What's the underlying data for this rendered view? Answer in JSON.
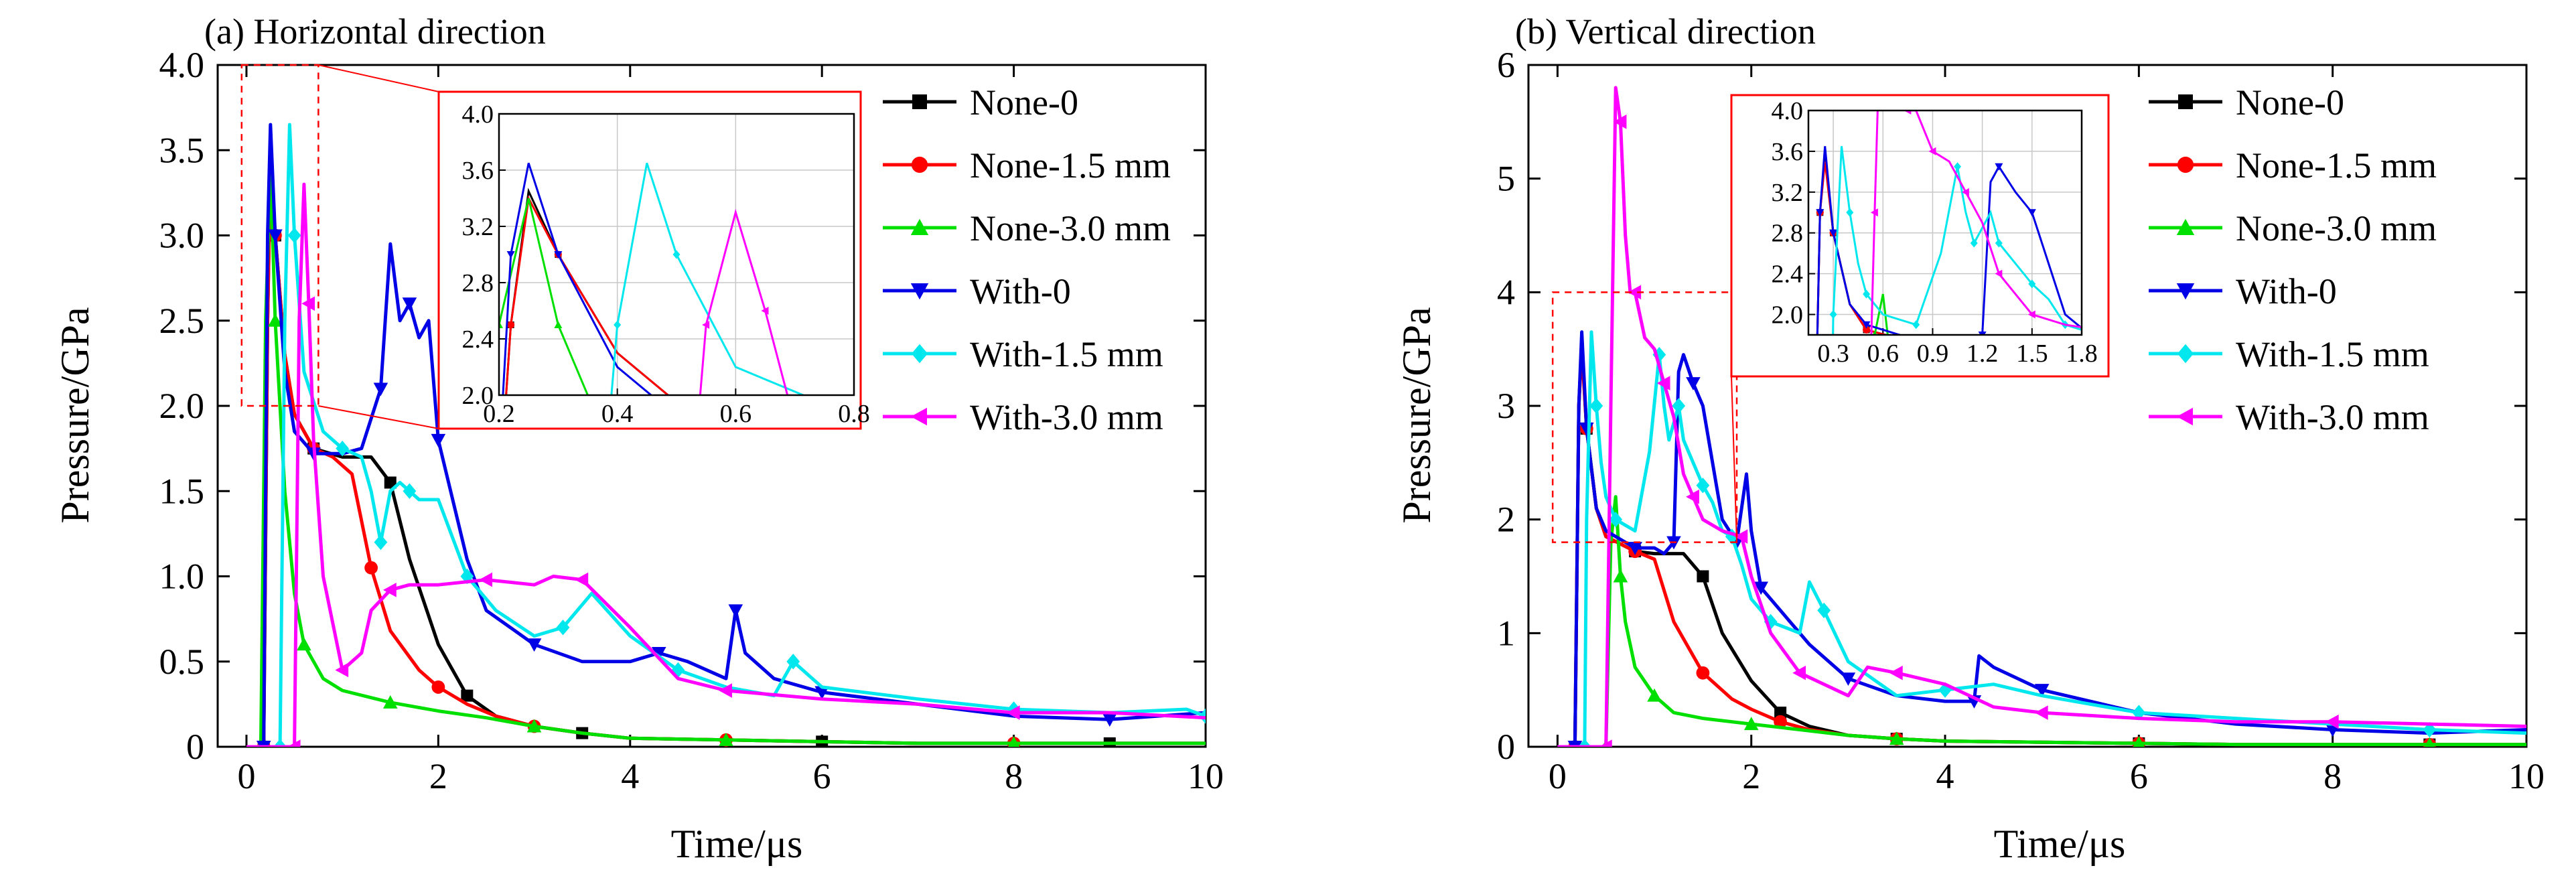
{
  "colors": {
    "None-0": "#000000",
    "None-1.5 mm": "#ff0000",
    "None-3.0 mm": "#00e000",
    "With-0": "#0000e6",
    "With-1.5 mm": "#00e8ee",
    "With-3.0 mm": "#ff00ff",
    "zoom_box": "#ff0000"
  },
  "markers": {
    "None-0": "square",
    "None-1.5 mm": "circle",
    "None-3.0 mm": "triangle-up",
    "With-0": "triangle-down",
    "With-1.5 mm": "diamond",
    "With-3.0 mm": "triangle-left"
  },
  "chart_data": [
    {
      "type": "line",
      "title": "(a) Horizontal direction",
      "xlabel": "Time/μs",
      "ylabel": "Pressure/GPa",
      "xlim": [
        -0.3,
        10
      ],
      "ylim": [
        0,
        4.0
      ],
      "xticks": [
        "0",
        "2",
        "4",
        "6",
        "8",
        "10"
      ],
      "xtick_values": [
        0,
        2,
        4,
        6,
        8,
        10
      ],
      "yticks": [
        "0",
        "0.5",
        "1.0",
        "1.5",
        "2.0",
        "2.5",
        "3.0",
        "3.5",
        "4.0"
      ],
      "ytick_values": [
        0,
        0.5,
        1.0,
        1.5,
        2.0,
        2.5,
        3.0,
        3.5,
        4.0
      ],
      "legend": [
        "None-0",
        "None-1.5 mm",
        "None-3.0 mm",
        "With-0",
        "With-1.5 mm",
        "With-3.0 mm"
      ],
      "legend_position": "right",
      "zoom_region": {
        "x": [
          -0.05,
          0.75
        ],
        "y": [
          2.0,
          4.0
        ]
      },
      "series": [
        {
          "name": "None-0",
          "x": [
            0,
            0.18,
            0.22,
            0.25,
            0.3,
            0.4,
            0.5,
            0.7,
            1.0,
            1.3,
            1.5,
            1.7,
            2.0,
            2.3,
            2.6,
            3.0,
            3.5,
            4.0,
            5,
            6,
            7,
            8,
            9,
            10
          ],
          "y": [
            0,
            0,
            2.5,
            3.45,
            3.0,
            2.3,
            1.95,
            1.75,
            1.7,
            1.7,
            1.55,
            1.1,
            0.6,
            0.3,
            0.18,
            0.12,
            0.08,
            0.05,
            0.04,
            0.03,
            0.02,
            0.02,
            0.02,
            0.02
          ]
        },
        {
          "name": "None-1.5 mm",
          "x": [
            0,
            0.18,
            0.22,
            0.25,
            0.3,
            0.4,
            0.5,
            0.7,
            0.9,
            1.1,
            1.3,
            1.5,
            1.8,
            2.0,
            2.3,
            2.6,
            3.0,
            3.5,
            4.0,
            5,
            6,
            7,
            8,
            9,
            10
          ],
          "y": [
            0,
            0,
            2.5,
            3.4,
            3.0,
            2.3,
            1.95,
            1.75,
            1.7,
            1.6,
            1.05,
            0.68,
            0.45,
            0.35,
            0.25,
            0.18,
            0.12,
            0.08,
            0.05,
            0.04,
            0.03,
            0.02,
            0.02,
            0.02,
            0.02
          ]
        },
        {
          "name": "None-3.0 mm",
          "x": [
            0,
            0.15,
            0.2,
            0.25,
            0.3,
            0.4,
            0.5,
            0.6,
            0.8,
            1.0,
            1.5,
            2.0,
            2.5,
            3.0,
            3.5,
            4.0,
            5,
            6,
            7,
            8,
            9,
            10
          ],
          "y": [
            0,
            0,
            2.5,
            3.4,
            2.5,
            1.5,
            0.9,
            0.6,
            0.4,
            0.33,
            0.26,
            0.21,
            0.17,
            0.12,
            0.08,
            0.05,
            0.04,
            0.03,
            0.02,
            0.02,
            0.02,
            0.02
          ]
        },
        {
          "name": "With-0",
          "x": [
            0,
            0.18,
            0.22,
            0.25,
            0.3,
            0.4,
            0.5,
            0.7,
            1.0,
            1.2,
            1.4,
            1.5,
            1.6,
            1.7,
            1.8,
            1.9,
            2.0,
            2.3,
            2.5,
            3.0,
            3.5,
            4.0,
            4.3,
            4.6,
            5.0,
            5.1,
            5.2,
            5.5,
            6.0,
            7,
            8,
            9,
            10
          ],
          "y": [
            0,
            0,
            3.0,
            3.65,
            3.0,
            2.2,
            1.85,
            1.72,
            1.72,
            1.75,
            2.1,
            2.95,
            2.5,
            2.6,
            2.4,
            2.5,
            1.8,
            1.1,
            0.8,
            0.6,
            0.5,
            0.5,
            0.55,
            0.5,
            0.4,
            0.8,
            0.55,
            0.4,
            0.32,
            0.25,
            0.18,
            0.16,
            0.2
          ]
        },
        {
          "name": "With-1.5 mm",
          "x": [
            0,
            0.35,
            0.4,
            0.45,
            0.5,
            0.6,
            0.8,
            1.0,
            1.2,
            1.3,
            1.4,
            1.5,
            1.6,
            1.7,
            1.8,
            2.0,
            2.3,
            2.6,
            3.0,
            3.3,
            3.6,
            4.0,
            4.5,
            5.0,
            5.5,
            5.7,
            6.0,
            7,
            8,
            9,
            9.8,
            10
          ],
          "y": [
            0,
            0,
            2.5,
            3.65,
            3.0,
            2.2,
            1.85,
            1.75,
            1.7,
            1.5,
            1.2,
            1.5,
            1.55,
            1.5,
            1.45,
            1.45,
            1.0,
            0.8,
            0.65,
            0.7,
            0.9,
            0.65,
            0.45,
            0.35,
            0.3,
            0.5,
            0.35,
            0.28,
            0.22,
            0.2,
            0.22,
            0.18
          ]
        },
        {
          "name": "With-3.0 mm",
          "x": [
            0,
            0.5,
            0.55,
            0.6,
            0.65,
            0.7,
            0.8,
            1.0,
            1.2,
            1.3,
            1.5,
            1.7,
            2.0,
            2.5,
            3.0,
            3.2,
            3.5,
            4.0,
            4.5,
            5.0,
            6,
            7,
            8,
            9,
            10
          ],
          "y": [
            0,
            0,
            2.5,
            3.3,
            2.6,
            1.8,
            1.0,
            0.45,
            0.55,
            0.8,
            0.92,
            0.95,
            0.95,
            0.98,
            0.95,
            1.0,
            0.98,
            0.7,
            0.4,
            0.33,
            0.28,
            0.25,
            0.2,
            0.2,
            0.17
          ]
        }
      ],
      "inset": {
        "xlim": [
          0.2,
          0.8
        ],
        "ylim": [
          2.0,
          4.0
        ],
        "xticks": [
          "0.2",
          "0.4",
          "0.6",
          "0.8"
        ],
        "xtick_values": [
          0.2,
          0.4,
          0.6,
          0.8
        ],
        "yticks": [
          "2.0",
          "2.4",
          "2.8",
          "3.2",
          "3.6",
          "4.0"
        ],
        "ytick_values": [
          2.0,
          2.4,
          2.8,
          3.2,
          3.6,
          4.0
        ]
      }
    },
    {
      "type": "line",
      "title": "(b) Vertical direction",
      "xlabel": "Time/μs",
      "ylabel": "Pressure/GPa",
      "xlim": [
        -0.3,
        10
      ],
      "ylim": [
        0,
        6
      ],
      "xticks": [
        "0",
        "2",
        "4",
        "6",
        "8",
        "10"
      ],
      "xtick_values": [
        0,
        2,
        4,
        6,
        8,
        10
      ],
      "yticks": [
        "0",
        "1",
        "2",
        "3",
        "4",
        "5",
        "6"
      ],
      "ytick_values": [
        0,
        1,
        2,
        3,
        4,
        5,
        6
      ],
      "legend": [
        "None-0",
        "None-1.5 mm",
        "None-3.0 mm",
        "With-0",
        "With-1.5 mm",
        "With-3.0 mm"
      ],
      "legend_position": "right",
      "zoom_region": {
        "x": [
          -0.05,
          1.85
        ],
        "y": [
          1.8,
          4.0
        ]
      },
      "series": [
        {
          "name": "None-0",
          "x": [
            0,
            0.18,
            0.22,
            0.25,
            0.3,
            0.4,
            0.5,
            0.8,
            1.0,
            1.3,
            1.5,
            1.7,
            2.0,
            2.3,
            2.6,
            3.0,
            3.5,
            4.0,
            5,
            6,
            7,
            8,
            9,
            10
          ],
          "y": [
            0,
            0,
            3.0,
            3.55,
            2.8,
            2.1,
            1.85,
            1.72,
            1.7,
            1.7,
            1.5,
            1.0,
            0.58,
            0.3,
            0.18,
            0.1,
            0.07,
            0.05,
            0.04,
            0.03,
            0.02,
            0.02,
            0.02,
            0.02
          ]
        },
        {
          "name": "None-1.5 mm",
          "x": [
            0,
            0.18,
            0.22,
            0.25,
            0.3,
            0.4,
            0.5,
            0.8,
            1.0,
            1.2,
            1.5,
            1.8,
            2.0,
            2.3,
            2.6,
            3.0,
            3.5,
            4.0,
            5,
            6,
            7,
            8,
            9,
            10
          ],
          "y": [
            0,
            0,
            3.0,
            3.5,
            2.8,
            2.1,
            1.85,
            1.72,
            1.65,
            1.1,
            0.65,
            0.42,
            0.33,
            0.22,
            0.15,
            0.1,
            0.07,
            0.05,
            0.04,
            0.03,
            0.02,
            0.02,
            0.02,
            0.02
          ]
        },
        {
          "name": "None-3.0 mm",
          "x": [
            0,
            0.5,
            0.55,
            0.6,
            0.65,
            0.7,
            0.8,
            1.0,
            1.2,
            1.5,
            2.0,
            2.5,
            3.0,
            3.5,
            4.0,
            5,
            6,
            7,
            8,
            9,
            10
          ],
          "y": [
            0,
            0,
            1.8,
            2.2,
            1.5,
            1.1,
            0.7,
            0.45,
            0.3,
            0.25,
            0.2,
            0.15,
            0.1,
            0.07,
            0.05,
            0.04,
            0.03,
            0.02,
            0.02,
            0.02,
            0.02
          ]
        },
        {
          "name": "With-0",
          "x": [
            0,
            0.18,
            0.22,
            0.25,
            0.3,
            0.4,
            0.5,
            0.8,
            1.0,
            1.1,
            1.2,
            1.25,
            1.3,
            1.4,
            1.5,
            1.7,
            1.85,
            1.95,
            2.0,
            2.1,
            2.3,
            2.6,
            3.0,
            3.5,
            4.0,
            4.3,
            4.35,
            4.5,
            5.0,
            6,
            7,
            8,
            9,
            10
          ],
          "y": [
            0,
            0,
            3.0,
            3.65,
            2.8,
            2.1,
            1.9,
            1.75,
            1.75,
            1.7,
            1.8,
            3.3,
            3.45,
            3.2,
            3.0,
            2.0,
            1.8,
            2.4,
            1.9,
            1.4,
            1.2,
            0.9,
            0.6,
            0.45,
            0.4,
            0.4,
            0.8,
            0.7,
            0.5,
            0.3,
            0.2,
            0.15,
            0.12,
            0.15
          ]
        },
        {
          "name": "With-1.5 mm",
          "x": [
            0,
            0.28,
            0.3,
            0.35,
            0.4,
            0.45,
            0.5,
            0.6,
            0.8,
            0.95,
            1.05,
            1.1,
            1.15,
            1.25,
            1.3,
            1.4,
            1.5,
            1.6,
            1.7,
            1.8,
            1.9,
            2.0,
            2.2,
            2.5,
            2.6,
            2.75,
            3.0,
            3.5,
            4.0,
            4.5,
            5,
            6,
            7,
            8,
            9,
            10
          ],
          "y": [
            0,
            0,
            2.0,
            3.65,
            3.0,
            2.5,
            2.2,
            2.0,
            1.9,
            2.6,
            3.45,
            3.0,
            2.7,
            3.0,
            2.7,
            2.5,
            2.3,
            2.15,
            1.9,
            1.85,
            1.6,
            1.3,
            1.1,
            1.0,
            1.45,
            1.2,
            0.75,
            0.45,
            0.5,
            0.55,
            0.45,
            0.3,
            0.25,
            0.2,
            0.15,
            0.12
          ]
        },
        {
          "name": "With-3.0 mm",
          "x": [
            0,
            0.5,
            0.55,
            0.6,
            0.65,
            0.7,
            0.75,
            0.8,
            0.9,
            1.0,
            1.1,
            1.2,
            1.3,
            1.4,
            1.5,
            1.7,
            1.9,
            2.0,
            2.2,
            2.5,
            3.0,
            3.2,
            3.5,
            4.0,
            4.5,
            5,
            6,
            7,
            8,
            9,
            10
          ],
          "y": [
            0,
            0,
            3.0,
            5.8,
            5.5,
            4.5,
            4.0,
            4.0,
            3.6,
            3.5,
            3.2,
            2.9,
            2.4,
            2.2,
            2.0,
            1.9,
            1.85,
            1.5,
            1.0,
            0.65,
            0.45,
            0.7,
            0.65,
            0.55,
            0.35,
            0.3,
            0.25,
            0.22,
            0.22,
            0.2,
            0.18
          ]
        }
      ],
      "inset": {
        "xlim": [
          0.15,
          1.8
        ],
        "ylim": [
          1.8,
          4.0
        ],
        "xticks": [
          "0.3",
          "0.6",
          "0.9",
          "1.2",
          "1.5",
          "1.8"
        ],
        "xtick_values": [
          0.3,
          0.6,
          0.9,
          1.2,
          1.5,
          1.8
        ],
        "yticks": [
          "2.0",
          "2.4",
          "2.8",
          "3.2",
          "3.6",
          "4.0"
        ],
        "ytick_values": [
          2.0,
          2.4,
          2.8,
          3.2,
          3.6,
          4.0
        ]
      }
    }
  ]
}
